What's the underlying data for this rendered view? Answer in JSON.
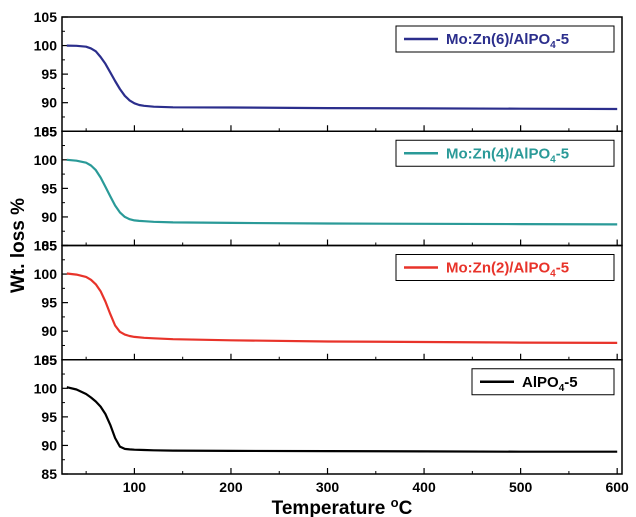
{
  "chart_data": {
    "type": "line",
    "layout": "stacked-panels",
    "xlabel": "Temperature",
    "xlabel_unit_sup": "o",
    "xlabel_unit": "C",
    "ylabel": "Wt. loss %",
    "xlim": [
      25,
      605
    ],
    "ylim": [
      85,
      105
    ],
    "x_ticks": [
      100,
      200,
      300,
      400,
      500,
      600
    ],
    "y_ticks": [
      85,
      90,
      95,
      100,
      105
    ],
    "legend_position": "top-right",
    "panels": [
      {
        "legend": {
          "prefix": "Mo:Zn(6)/AlPO",
          "sub": "4",
          "suffix": "-5"
        },
        "color": "#2b2e8c",
        "series": {
          "x": [
            30,
            40,
            50,
            55,
            60,
            65,
            70,
            75,
            80,
            85,
            90,
            95,
            100,
            105,
            110,
            120,
            140,
            200,
            300,
            400,
            500,
            600
          ],
          "y": [
            100,
            99.95,
            99.8,
            99.5,
            99.0,
            98.0,
            96.8,
            95.3,
            93.8,
            92.4,
            91.2,
            90.4,
            89.9,
            89.6,
            89.45,
            89.3,
            89.2,
            89.15,
            89.05,
            89.0,
            88.95,
            88.9
          ]
        }
      },
      {
        "legend": {
          "prefix": "Mo:Zn(4)/AlPO",
          "sub": "4",
          "suffix": "-5"
        },
        "color": "#2a9a98",
        "series": {
          "x": [
            30,
            40,
            50,
            55,
            60,
            65,
            70,
            75,
            80,
            85,
            90,
            95,
            100,
            105,
            110,
            120,
            140,
            200,
            300,
            400,
            500,
            600
          ],
          "y": [
            100,
            99.85,
            99.5,
            99.0,
            98.2,
            96.9,
            95.3,
            93.6,
            92.0,
            90.8,
            90.0,
            89.6,
            89.4,
            89.3,
            89.25,
            89.15,
            89.05,
            88.95,
            88.85,
            88.8,
            88.75,
            88.7
          ]
        }
      },
      {
        "legend": {
          "prefix": "Mo:Zn(2)/AlPO",
          "sub": "4",
          "suffix": "-5"
        },
        "color": "#e8332a",
        "series": {
          "x": [
            30,
            40,
            50,
            55,
            60,
            65,
            70,
            75,
            80,
            85,
            90,
            95,
            100,
            110,
            120,
            140,
            200,
            300,
            400,
            500,
            600
          ],
          "y": [
            100.1,
            99.9,
            99.5,
            99.0,
            98.2,
            97.0,
            95.2,
            93.0,
            91.0,
            89.9,
            89.4,
            89.15,
            89.0,
            88.85,
            88.75,
            88.6,
            88.4,
            88.2,
            88.1,
            88.0,
            87.95
          ]
        }
      },
      {
        "legend": {
          "prefix": "AlPO",
          "sub": "4",
          "suffix": "-5"
        },
        "color": "#000000",
        "series": {
          "x": [
            30,
            40,
            50,
            55,
            60,
            65,
            70,
            75,
            80,
            85,
            90,
            95,
            100,
            110,
            120,
            140,
            200,
            300,
            400,
            500,
            600
          ],
          "y": [
            100.2,
            99.8,
            99.0,
            98.4,
            97.7,
            96.8,
            95.5,
            93.6,
            91.3,
            89.8,
            89.4,
            89.3,
            89.25,
            89.2,
            89.15,
            89.1,
            89.05,
            89.0,
            88.95,
            88.9,
            88.9
          ]
        }
      }
    ]
  }
}
